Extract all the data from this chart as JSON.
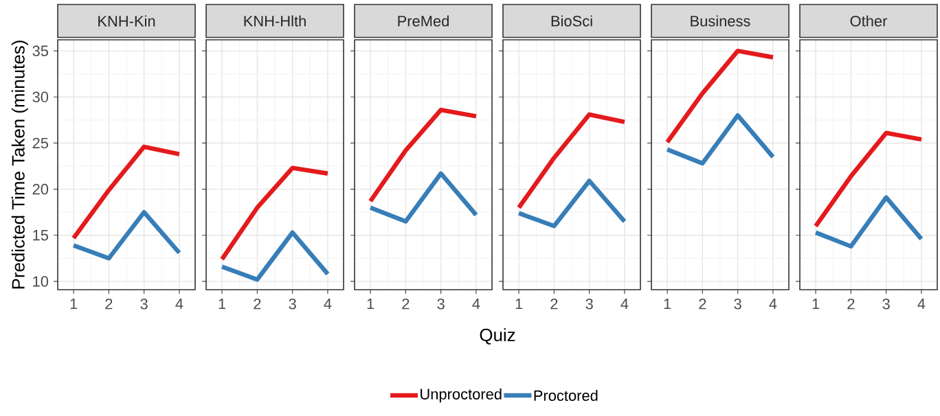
{
  "chart_data": [
    {
      "type": "line",
      "title": "KNH-Kin",
      "ylabel": "Predicted Time Taken (minutes)",
      "x": [
        1,
        2,
        3,
        4
      ],
      "xlim": [
        0.55,
        4.45
      ],
      "xticks": [
        1,
        2,
        3,
        4
      ],
      "ylim": [
        9.1,
        36.2
      ],
      "yticks": [
        10,
        15,
        20,
        25,
        30,
        35
      ],
      "grid": true,
      "legend": "bottom",
      "series": [
        {
          "name": "Unproctored",
          "color": "#e41a1c",
          "values": [
            14.7,
            19.9,
            24.6,
            23.8
          ]
        },
        {
          "name": "Proctored",
          "color": "#377eb8",
          "values": [
            13.9,
            12.5,
            17.5,
            13.1
          ]
        }
      ]
    },
    {
      "type": "line",
      "title": "KNH-Hlth",
      "x": [
        1,
        2,
        3,
        4
      ],
      "xlim": [
        0.55,
        4.45
      ],
      "xticks": [
        1,
        2,
        3,
        4
      ],
      "ylim": [
        9.1,
        36.2
      ],
      "yticks": [
        10,
        15,
        20,
        25,
        30,
        35
      ],
      "tick_labels": "x",
      "grid": true,
      "series": [
        {
          "color": "#e41a1c",
          "values": [
            12.4,
            18.0,
            22.3,
            21.7
          ]
        },
        {
          "color": "#377eb8",
          "values": [
            11.6,
            10.2,
            15.3,
            10.8
          ]
        }
      ]
    },
    {
      "type": "line",
      "title": "PreMed",
      "xlabel": "Quiz",
      "x": [
        1,
        2,
        3,
        4
      ],
      "xlim": [
        0.55,
        4.45
      ],
      "xticks": [
        1,
        2,
        3,
        4
      ],
      "ylim": [
        9.1,
        36.2
      ],
      "yticks": [
        10,
        15,
        20,
        25,
        30,
        35
      ],
      "tick_labels": "x",
      "grid": true,
      "series": [
        {
          "color": "#e41a1c",
          "values": [
            18.7,
            24.2,
            28.6,
            27.9
          ]
        },
        {
          "color": "#377eb8",
          "values": [
            18.0,
            16.5,
            21.7,
            17.2
          ]
        }
      ]
    },
    {
      "type": "line",
      "title": "BioSci",
      "x": [
        1,
        2,
        3,
        4
      ],
      "xlim": [
        0.55,
        4.45
      ],
      "xticks": [
        1,
        2,
        3,
        4
      ],
      "ylim": [
        9.1,
        36.2
      ],
      "yticks": [
        10,
        15,
        20,
        25,
        30,
        35
      ],
      "tick_labels": "x",
      "grid": true,
      "series": [
        {
          "color": "#e41a1c",
          "values": [
            18.0,
            23.4,
            28.1,
            27.3
          ]
        },
        {
          "color": "#377eb8",
          "values": [
            17.4,
            16.0,
            20.9,
            16.5
          ]
        }
      ]
    },
    {
      "type": "line",
      "title": "Business",
      "x": [
        1,
        2,
        3,
        4
      ],
      "xlim": [
        0.55,
        4.45
      ],
      "xticks": [
        1,
        2,
        3,
        4
      ],
      "ylim": [
        9.1,
        36.2
      ],
      "yticks": [
        10,
        15,
        20,
        25,
        30,
        35
      ],
      "tick_labels": "x",
      "grid": true,
      "series": [
        {
          "color": "#e41a1c",
          "values": [
            25.1,
            30.4,
            35.0,
            34.3
          ]
        },
        {
          "color": "#377eb8",
          "values": [
            24.3,
            22.8,
            28.0,
            23.5
          ]
        }
      ]
    },
    {
      "type": "line",
      "title": "Other",
      "x": [
        1,
        2,
        3,
        4
      ],
      "xlim": [
        0.55,
        4.45
      ],
      "xticks": [
        1,
        2,
        3,
        4
      ],
      "ylim": [
        9.1,
        36.2
      ],
      "yticks": [
        10,
        15,
        20,
        25,
        30,
        35
      ],
      "tick_labels": "x",
      "grid": true,
      "series": [
        {
          "color": "#e41a1c",
          "values": [
            16.0,
            21.4,
            26.1,
            25.4
          ]
        },
        {
          "color": "#377eb8",
          "values": [
            15.3,
            13.8,
            19.1,
            14.6
          ]
        }
      ]
    }
  ]
}
